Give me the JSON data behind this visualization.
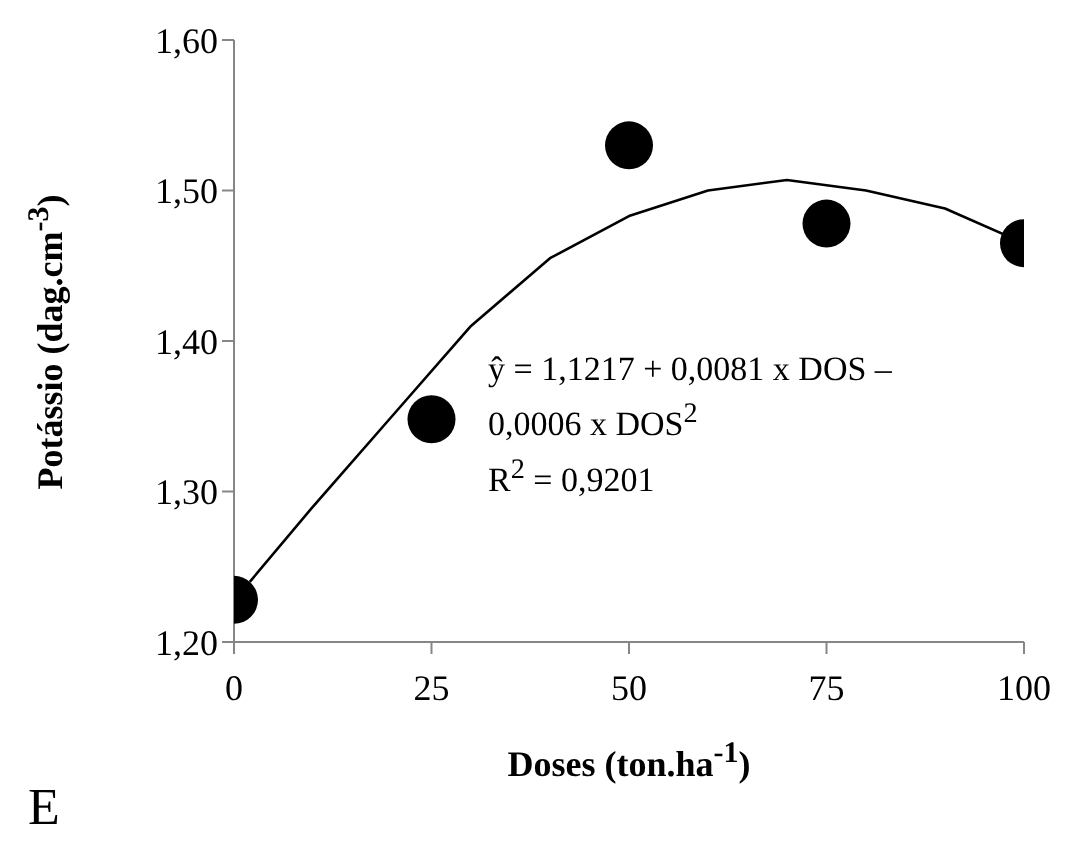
{
  "chart_data": {
    "type": "scatter",
    "xlabel": "Doses (ton.ha$^{-1}$)",
    "ylabel": "Potássio (dag.cm$^{-3}$)",
    "annotations": [
      "ŷ = 1,1217 + 0,0081 x DOS – 0,0006 x DOS$^{2}$",
      "R$^{2}$ = 0,9201",
      "E"
    ],
    "series": [
      {
        "color": "#000000",
        "marker": "circle",
        "x": [
          0,
          25,
          50,
          75,
          100
        ],
        "values": [
          1.228,
          1.348,
          1.53,
          1.478,
          1.465
        ]
      },
      {
        "type": "line",
        "color": "#000000",
        "marker": "none",
        "x": [
          2,
          10,
          20,
          30,
          40,
          50,
          60,
          70,
          80,
          90,
          100
        ],
        "values": [
          1.24,
          1.29,
          1.35,
          1.41,
          1.455,
          1.483,
          1.5,
          1.507,
          1.5,
          1.488,
          1.465
        ]
      }
    ],
    "xlim": [
      0,
      100
    ],
    "xticks": [
      0,
      25,
      50,
      75,
      100
    ],
    "ylim": [
      1.2,
      1.6
    ],
    "yticks": [
      {
        "value": 1.2,
        "label": "1,20"
      },
      {
        "value": 1.3,
        "label": "1,30"
      },
      {
        "value": 1.4,
        "label": "1,40"
      },
      {
        "value": 1.5,
        "label": "1,50"
      },
      {
        "value": 1.6,
        "label": "1,60"
      }
    ],
    "grid": false,
    "legend": false
  }
}
